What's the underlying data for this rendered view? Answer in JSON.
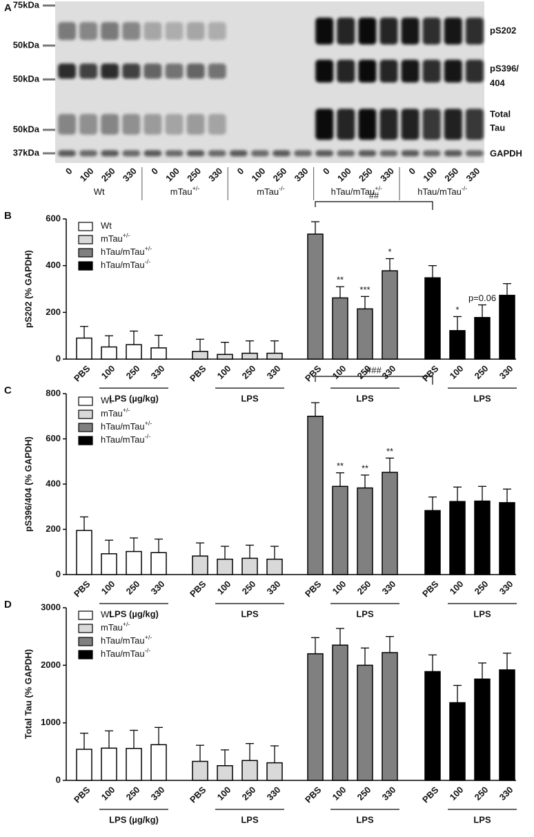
{
  "blot": {
    "label": "A",
    "markers": [
      "75kDa",
      "50kDa",
      "50kDa",
      "50kDa",
      "37kDa"
    ],
    "rows": [
      {
        "lines": [
          "pS202"
        ]
      },
      {
        "lines": [
          "pS396/",
          "404"
        ]
      },
      {
        "lines": [
          "Total",
          "Tau"
        ]
      },
      {
        "lines": [
          "GAPDH"
        ]
      }
    ],
    "lanes": [
      "0",
      "100",
      "250",
      "330"
    ],
    "groups": [
      {
        "name": "Wt"
      },
      {
        "name": "mTau",
        "sup": "+/-"
      },
      {
        "name": "mTau",
        "sup": "-/-"
      },
      {
        "name": "hTau/mTau",
        "sup": "+/-"
      },
      {
        "name": "hTau/mTau",
        "sup": "-/-"
      }
    ]
  },
  "chart_data": [
    {
      "type": "bar",
      "panel": "B",
      "ylabel": "pS202 (% GAPDH)",
      "ylim": [
        0,
        600
      ],
      "yticks": [
        0,
        200,
        400,
        600
      ],
      "categories": [
        "PBS",
        "100",
        "250",
        "330"
      ],
      "group_labels": [
        "LPS (µg/kg)",
        "LPS",
        "LPS",
        "LPS"
      ],
      "bracket_label": "##",
      "series": [
        {
          "name": "Wt",
          "color": "#ffffff",
          "values": [
            90,
            52,
            62,
            48
          ],
          "errors": [
            50,
            48,
            58,
            54
          ]
        },
        {
          "name": "mTau",
          "sup": "+/-",
          "color": "#d9d9d9",
          "values": [
            33,
            20,
            25,
            25
          ],
          "errors": [
            52,
            52,
            53,
            53
          ]
        },
        {
          "name": "hTau/mTau",
          "sup": "+/-",
          "color": "#808080",
          "values": [
            535,
            262,
            215,
            378
          ],
          "errors": [
            53,
            48,
            53,
            52
          ],
          "stars": [
            null,
            "**",
            "***",
            "*"
          ]
        },
        {
          "name": "hTau/mTau",
          "sup": "-/-",
          "color": "#000000",
          "values": [
            348,
            122,
            178,
            273
          ],
          "errors": [
            52,
            60,
            54,
            50
          ],
          "stars": [
            null,
            "*",
            "p=0.06",
            null
          ]
        }
      ]
    },
    {
      "type": "bar",
      "panel": "C",
      "ylabel": "pS396/404 (% GAPDH)",
      "ylim": [
        0,
        800
      ],
      "yticks": [
        0,
        200,
        400,
        600,
        800
      ],
      "categories": [
        "PBS",
        "100",
        "250",
        "330"
      ],
      "group_labels": [
        "LPS (µg/kg)",
        "LPS",
        "LPS",
        "LPS"
      ],
      "bracket_label": "###",
      "series": [
        {
          "name": "Wt",
          "color": "#ffffff",
          "values": [
            195,
            92,
            102,
            97
          ],
          "errors": [
            60,
            60,
            60,
            60
          ]
        },
        {
          "name": "mTau",
          "sup": "+/-",
          "color": "#d9d9d9",
          "values": [
            82,
            68,
            72,
            68
          ],
          "errors": [
            58,
            57,
            58,
            57
          ]
        },
        {
          "name": "hTau/mTau",
          "sup": "+/-",
          "color": "#808080",
          "values": [
            700,
            390,
            383,
            452
          ],
          "errors": [
            60,
            60,
            57,
            63
          ],
          "stars": [
            null,
            "**",
            "**",
            "**"
          ]
        },
        {
          "name": "hTau/mTau",
          "sup": "-/-",
          "color": "#000000",
          "values": [
            283,
            323,
            325,
            318
          ],
          "errors": [
            60,
            64,
            65,
            60
          ]
        }
      ]
    },
    {
      "type": "bar",
      "panel": "D",
      "ylabel": "Total Tau (% GAPDH)",
      "ylim": [
        0,
        3000
      ],
      "yticks": [
        0,
        1000,
        2000,
        3000
      ],
      "categories": [
        "PBS",
        "100",
        "250",
        "330"
      ],
      "group_labels": [
        "LPS (µg/kg)",
        "LPS",
        "LPS",
        "LPS"
      ],
      "series": [
        {
          "name": "Wt",
          "color": "#ffffff",
          "values": [
            540,
            560,
            555,
            620
          ],
          "errors": [
            280,
            300,
            315,
            300
          ]
        },
        {
          "name": "mTau",
          "sup": "+/-",
          "color": "#d9d9d9",
          "values": [
            330,
            255,
            345,
            305
          ],
          "errors": [
            280,
            275,
            295,
            295
          ]
        },
        {
          "name": "hTau/mTau",
          "sup": "+/-",
          "color": "#808080",
          "values": [
            2200,
            2350,
            2000,
            2220
          ],
          "errors": [
            280,
            290,
            300,
            280
          ]
        },
        {
          "name": "hTau/mTau",
          "sup": "-/-",
          "color": "#000000",
          "values": [
            1890,
            1350,
            1760,
            1920
          ],
          "errors": [
            290,
            300,
            280,
            290
          ]
        }
      ]
    }
  ]
}
